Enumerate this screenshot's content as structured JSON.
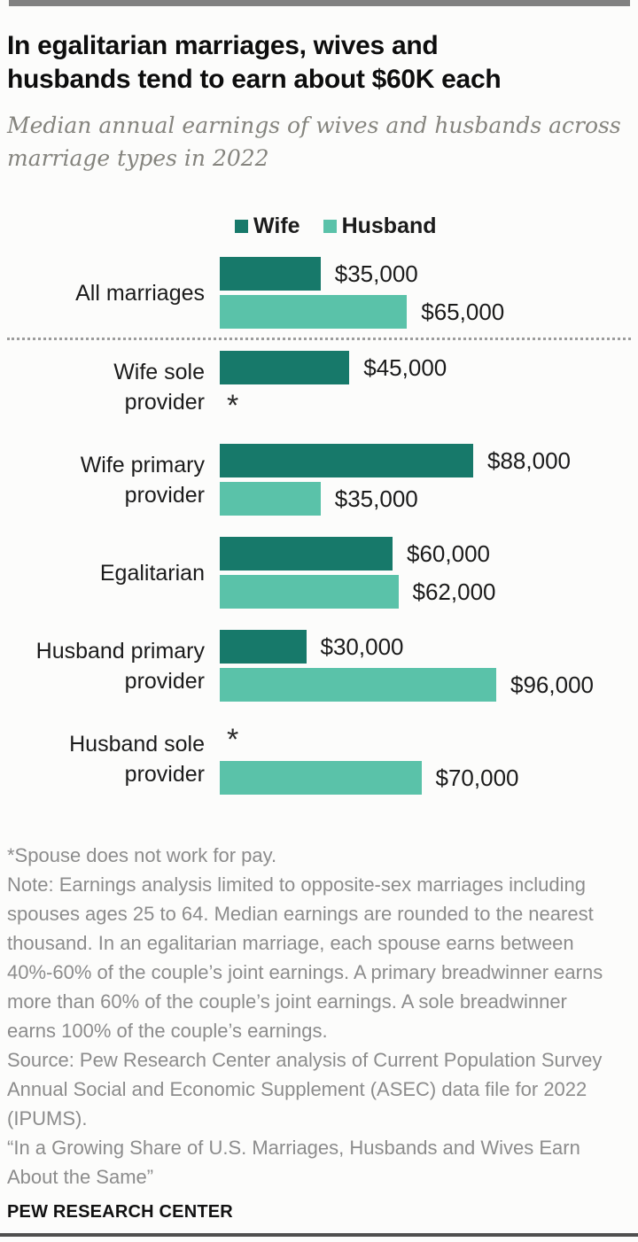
{
  "header": {
    "title_lines": [
      "In egalitarian marriages, wives and",
      "husbands tend to earn about $60K each"
    ],
    "subtitle_lines": [
      "Median annual earnings of wives and husbands across",
      "marriage types in 2022"
    ]
  },
  "chart_data": {
    "type": "bar",
    "orientation": "horizontal",
    "title": "In egalitarian marriages, wives and husbands tend to earn about $60K each",
    "subtitle": "Median annual earnings of wives and husbands across marriage types in 2022",
    "categories": [
      "All marriages",
      "Wife sole provider",
      "Wife primary provider",
      "Egalitarian",
      "Husband primary provider",
      "Husband sole provider"
    ],
    "series": [
      {
        "name": "Wife",
        "color": "#17796a",
        "values": [
          35000,
          45000,
          88000,
          60000,
          30000,
          null
        ]
      },
      {
        "name": "Husband",
        "color": "#5ac2a9",
        "values": [
          65000,
          null,
          35000,
          62000,
          96000,
          70000
        ]
      }
    ],
    "value_labels": {
      "wife": [
        "$35,000",
        "$45,000",
        "$88,000",
        "$60,000",
        "$30,000",
        ""
      ],
      "husband": [
        "$65,000",
        "",
        "$35,000",
        "$62,000",
        "$96,000",
        "$70,000"
      ]
    },
    "null_marker": "*",
    "null_marker_meaning": "Spouse does not work for pay.",
    "axis": {
      "x_min": 0,
      "x_max": 100000,
      "gridlines": false
    },
    "legend_position": "top"
  },
  "legend": {
    "items": [
      {
        "label": "Wife"
      },
      {
        "label": "Husband"
      }
    ]
  },
  "groups": [
    {
      "label_lines": [
        "All marriages"
      ],
      "wife": {
        "value": 35000,
        "display": "$35,000",
        "marker": ""
      },
      "husband": {
        "value": 65000,
        "display": "$65,000",
        "marker": ""
      }
    },
    {
      "label_lines": [
        "Wife sole",
        "provider"
      ],
      "wife": {
        "value": 45000,
        "display": "$45,000",
        "marker": ""
      },
      "husband": {
        "value": null,
        "display": "",
        "marker": "*"
      }
    },
    {
      "label_lines": [
        "Wife primary",
        "provider"
      ],
      "wife": {
        "value": 88000,
        "display": "$88,000",
        "marker": ""
      },
      "husband": {
        "value": 35000,
        "display": "$35,000",
        "marker": ""
      }
    },
    {
      "label_lines": [
        "Egalitarian"
      ],
      "wife": {
        "value": 60000,
        "display": "$60,000",
        "marker": ""
      },
      "husband": {
        "value": 62000,
        "display": "$62,000",
        "marker": ""
      }
    },
    {
      "label_lines": [
        "Husband primary",
        "provider"
      ],
      "wife": {
        "value": 30000,
        "display": "$30,000",
        "marker": ""
      },
      "husband": {
        "value": 96000,
        "display": "$96,000",
        "marker": ""
      }
    },
    {
      "label_lines": [
        "Husband sole",
        "provider"
      ],
      "wife": {
        "value": null,
        "display": "",
        "marker": "*"
      },
      "husband": {
        "value": 70000,
        "display": "$70,000",
        "marker": ""
      }
    }
  ],
  "footnotes": {
    "asterisk": "*Spouse does not work for pay.",
    "note": "Note: Earnings analysis limited to opposite-sex marriages including spouses ages 25 to 64. Median earnings are rounded to the nearest thousand. In an egalitarian marriage, each spouse earns between 40%-60% of the couple’s joint earnings. A primary breadwinner earns more than 60% of the couple’s joint earnings. A sole breadwinner earns 100% of the couple’s earnings.",
    "source": "Source: Pew Research Center analysis of Current Population Survey Annual Social and Economic Supplement (ASEC) data file for 2022 (IPUMS).",
    "quote": "“In a Growing Share of U.S. Marriages, Husbands and Wives Earn About the Same”"
  },
  "brand": "PEW RESEARCH CENTER"
}
